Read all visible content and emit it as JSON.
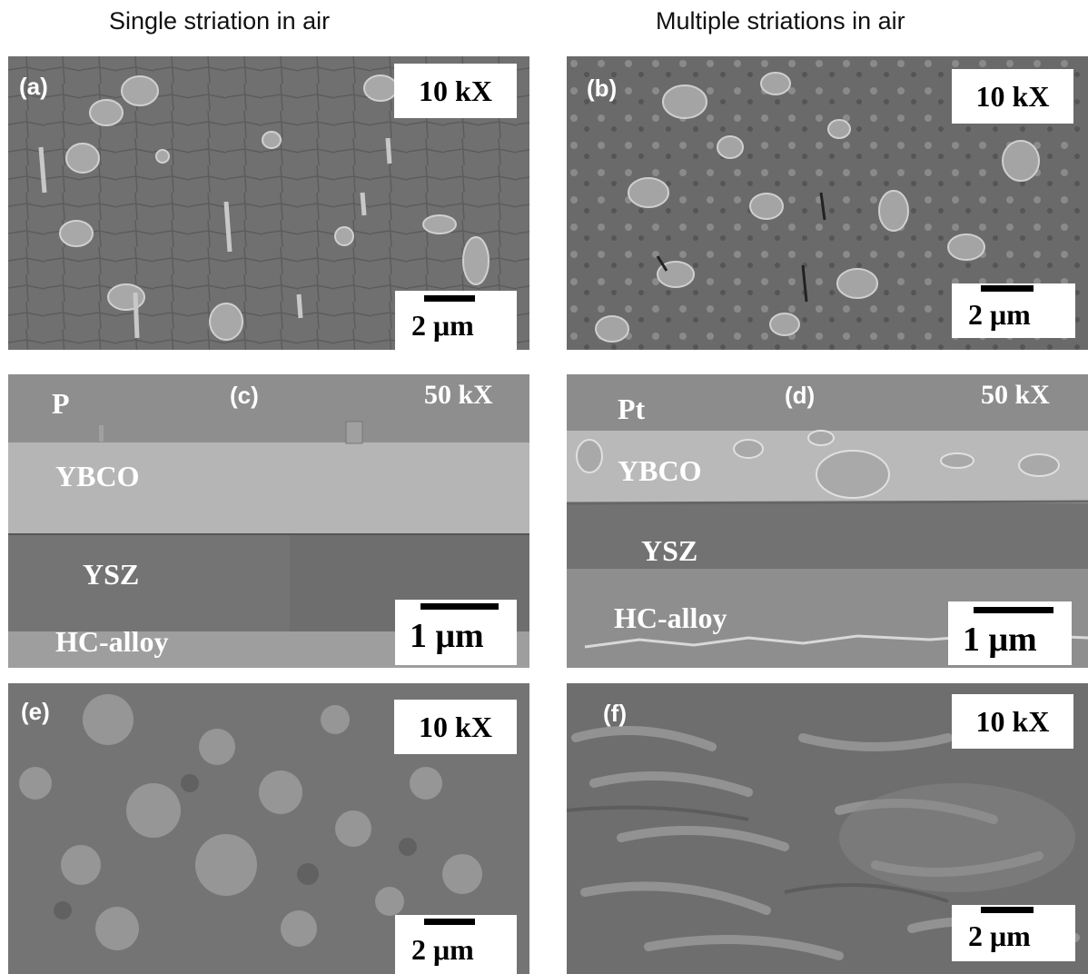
{
  "columns": {
    "left": "Single striation in air",
    "right": "Multiple striations in air"
  },
  "panels": {
    "a": {
      "label": "(a)",
      "mag": "10 kX",
      "scale": "2 μm"
    },
    "b": {
      "label": "(b)",
      "mag": "10 kX",
      "scale": "2 μm"
    },
    "c": {
      "label": "(c)",
      "mag": "50 kX",
      "scale": "1 μm",
      "layers": {
        "top": "P",
        "ybco": "YBCO",
        "ysz": "YSZ",
        "alloy": "HC-alloy"
      }
    },
    "d": {
      "label": "(d)",
      "mag": "50 kX",
      "scale": "1 μm",
      "layers": {
        "top": "Pt",
        "ybco": "YBCO",
        "ysz": "YSZ",
        "alloy": "HC-alloy"
      }
    },
    "e": {
      "label": "(e)",
      "mag": "10 kX",
      "scale": "2 μm"
    },
    "f": {
      "label": "(f)",
      "mag": "10 kX",
      "scale": "2 μm"
    }
  }
}
